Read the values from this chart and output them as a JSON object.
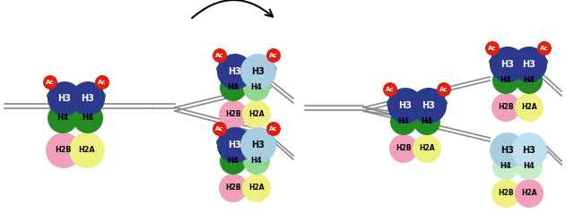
{
  "bg": "#ffffff",
  "H3_dark": "#2b3a8c",
  "H3_light": "#a8cce0",
  "H3_vlight": "#c0e0f0",
  "H4_dark": "#228b22",
  "H4_light": "#90d890",
  "H4_vlight": "#c8ecc8",
  "H2B_dark": "#f0a0b8",
  "H2B_light": "#f8c8d8",
  "H2A_dark": "#f0f080",
  "H2A_light": "#f8f8b0",
  "H2B_vlight": "#e8f8f8",
  "H2A_vlight": "#e0f8e0",
  "ac_red": "#e02010",
  "dna": "#888888",
  "tail_dark": "#228b22",
  "tail_light": "#90c090",
  "ac_text": "Ac"
}
